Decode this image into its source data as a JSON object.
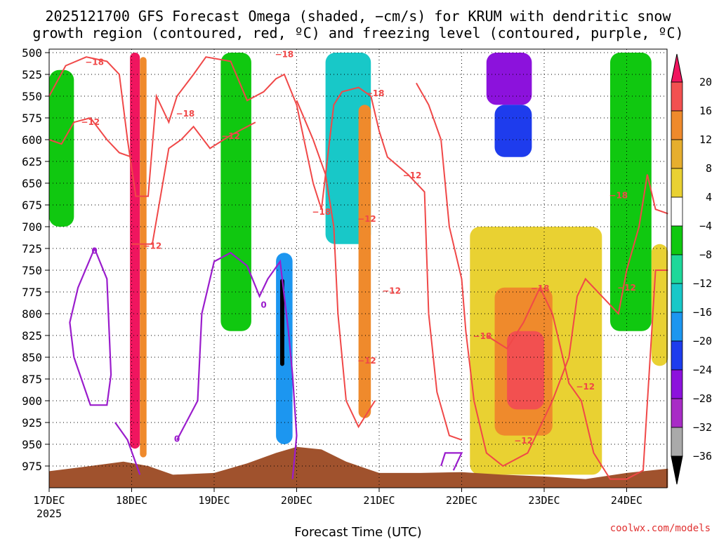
{
  "chart_data": {
    "type": "heatmap",
    "title_line1": "2025121700 GFS Forecast Omega (shaded, −cm/s) for KRUM with dendritic snow",
    "title_line2": "growth region (contoured, red, ºC) and freezing level (contoured, purple, ºC)",
    "xlabel": "Forecast Time (UTC)",
    "credit": "coolwx.com/models",
    "x_ticks": [
      {
        "label": "17DEC",
        "sub": "2025",
        "day": 0
      },
      {
        "label": "18DEC",
        "day": 1
      },
      {
        "label": "19DEC",
        "day": 2
      },
      {
        "label": "20DEC",
        "day": 3
      },
      {
        "label": "21DEC",
        "day": 4
      },
      {
        "label": "22DEC",
        "day": 5
      },
      {
        "label": "23DEC",
        "day": 6
      },
      {
        "label": "24DEC",
        "day": 7
      }
    ],
    "xlim_days": [
      0,
      7.5
    ],
    "y_ticks": [
      500,
      525,
      550,
      575,
      600,
      625,
      650,
      675,
      700,
      725,
      750,
      775,
      800,
      825,
      850,
      875,
      900,
      925,
      950,
      975
    ],
    "ylim_hpa": [
      496,
      1000
    ],
    "colorbar": {
      "labels": [
        "20",
        "16",
        "12",
        "8",
        "4",
        "−4",
        "−8",
        "−12",
        "−16",
        "−20",
        "−24",
        "−28",
        "−32",
        "−36"
      ],
      "colors": [
        "#f0155f",
        "#f25050",
        "#ef8a2c",
        "#e6ae2e",
        "#e9d132",
        "#ffffff",
        "#10c810",
        "#1ed89a",
        "#18c8c8",
        "#1c96f0",
        "#1e3ced",
        "#8c12dc",
        "#a82cc6",
        "#aaaaaa",
        "#000000"
      ]
    },
    "omega_features": [
      {
        "name": "pink-column-18dec",
        "color": "#f0155f",
        "day0": 0.98,
        "day1": 1.1,
        "p_top": 500,
        "p_bot": 955
      },
      {
        "name": "orange-core-18dec",
        "color": "#ef8a2c",
        "day0": 1.1,
        "day1": 1.18,
        "p_top": 505,
        "p_bot": 965
      },
      {
        "name": "green-band-17dec",
        "color": "#10c810",
        "day0": 0.0,
        "day1": 0.3,
        "p_top": 520,
        "p_bot": 700
      },
      {
        "name": "green-band-19dec",
        "color": "#10c810",
        "day0": 2.08,
        "day1": 2.45,
        "p_top": 500,
        "p_bot": 820
      },
      {
        "name": "blue-column-20dec",
        "color": "#1c96f0",
        "day0": 2.75,
        "day1": 2.95,
        "p_top": 730,
        "p_bot": 950
      },
      {
        "name": "black-core-20dec",
        "color": "#000000",
        "day0": 2.8,
        "day1": 2.85,
        "p_top": 760,
        "p_bot": 860
      },
      {
        "name": "purple-column-21dec",
        "color": "#8c12dc",
        "day0": 3.4,
        "day1": 3.55,
        "p_top": 500,
        "p_bot": 625
      },
      {
        "name": "cyan-column-21dec",
        "color": "#18c8c8",
        "day0": 3.35,
        "day1": 3.9,
        "p_top": 500,
        "p_bot": 720
      },
      {
        "name": "orange-band-21dec",
        "color": "#ef8a2c",
        "day0": 3.75,
        "day1": 3.9,
        "p_top": 560,
        "p_bot": 920
      },
      {
        "name": "purple-mid-23dec",
        "color": "#8c12dc",
        "day0": 5.3,
        "day1": 5.85,
        "p_top": 500,
        "p_bot": 560
      },
      {
        "name": "blue-mid-23dec",
        "color": "#1e3ced",
        "day0": 5.4,
        "day1": 5.85,
        "p_top": 560,
        "p_bot": 620
      },
      {
        "name": "yellow-low-23dec",
        "color": "#e9d132",
        "day0": 5.1,
        "day1": 6.7,
        "p_top": 700,
        "p_bot": 985
      },
      {
        "name": "orange-low-23dec",
        "color": "#ef8a2c",
        "day0": 5.4,
        "day1": 6.1,
        "p_top": 770,
        "p_bot": 940
      },
      {
        "name": "red-core-23dec",
        "color": "#f25050",
        "day0": 5.55,
        "day1": 6.0,
        "p_top": 820,
        "p_bot": 910
      },
      {
        "name": "green-right-24dec",
        "color": "#10c810",
        "day0": 6.8,
        "day1": 7.3,
        "p_top": 500,
        "p_bot": 820
      },
      {
        "name": "yellow-right-24dec",
        "color": "#e9d132",
        "day0": 7.3,
        "day1": 7.5,
        "p_top": 720,
        "p_bot": 860
      }
    ],
    "contour_labels_red": [
      {
        "text": "−18",
        "day": 0.55,
        "p": 511
      },
      {
        "text": "−12",
        "day": 0.5,
        "p": 580
      },
      {
        "text": "−18",
        "day": 1.65,
        "p": 570
      },
      {
        "text": "−12",
        "day": 2.2,
        "p": 596
      },
      {
        "text": "−12",
        "day": 1.25,
        "p": 722
      },
      {
        "text": "−18",
        "day": 2.85,
        "p": 502
      },
      {
        "text": "−18",
        "day": 3.3,
        "p": 683
      },
      {
        "text": "−12",
        "day": 3.85,
        "p": 691
      },
      {
        "text": "−18",
        "day": 3.95,
        "p": 547
      },
      {
        "text": "−12",
        "day": 4.4,
        "p": 641
      },
      {
        "text": "−12",
        "day": 4.15,
        "p": 774
      },
      {
        "text": "−12",
        "day": 3.85,
        "p": 854
      },
      {
        "text": "−18",
        "day": 5.25,
        "p": 826
      },
      {
        "text": "−18",
        "day": 5.95,
        "p": 771
      },
      {
        "text": "−12",
        "day": 5.75,
        "p": 946
      },
      {
        "text": "−12",
        "day": 6.5,
        "p": 884
      },
      {
        "text": "−18",
        "day": 6.9,
        "p": 664
      },
      {
        "text": "−12",
        "day": 7.0,
        "p": 770
      }
    ],
    "contour_labels_purple": [
      {
        "text": "0",
        "day": 0.55,
        "p": 728
      },
      {
        "text": "0",
        "day": 1.55,
        "p": 944
      },
      {
        "text": "0",
        "day": 2.6,
        "p": 790
      }
    ],
    "red_contours": [
      [
        [
          0.0,
          550
        ],
        [
          0.2,
          515
        ],
        [
          0.45,
          505
        ],
        [
          0.7,
          510
        ],
        [
          0.85,
          525
        ],
        [
          0.95,
          600
        ],
        [
          1.05,
          665
        ],
        [
          1.2,
          665
        ],
        [
          1.3,
          550
        ],
        [
          1.45,
          580
        ],
        [
          1.55,
          550
        ],
        [
          1.75,
          525
        ],
        [
          1.9,
          505
        ],
        [
          2.2,
          510
        ],
        [
          2.4,
          555
        ],
        [
          2.6,
          545
        ],
        [
          2.75,
          530
        ],
        [
          2.85,
          525
        ],
        [
          3.0,
          560
        ],
        [
          3.2,
          650
        ],
        [
          3.3,
          680
        ],
        [
          3.45,
          560
        ],
        [
          3.55,
          545
        ],
        [
          3.75,
          540
        ],
        [
          3.9,
          550
        ],
        [
          4.0,
          590
        ],
        [
          4.1,
          620
        ],
        [
          4.35,
          640
        ],
        [
          4.55,
          660
        ],
        [
          4.6,
          800
        ],
        [
          4.7,
          890
        ],
        [
          4.85,
          940
        ],
        [
          5.0,
          945
        ]
      ],
      [
        [
          0.0,
          600
        ],
        [
          0.15,
          605
        ],
        [
          0.3,
          580
        ],
        [
          0.5,
          575
        ],
        [
          0.7,
          600
        ],
        [
          0.85,
          615
        ],
        [
          1.0,
          620
        ]
      ],
      [
        [
          1.0,
          720
        ],
        [
          1.25,
          720
        ],
        [
          1.45,
          610
        ],
        [
          1.6,
          600
        ],
        [
          1.75,
          585
        ],
        [
          1.95,
          610
        ],
        [
          2.2,
          595
        ],
        [
          2.5,
          580
        ]
      ],
      [
        [
          3.0,
          555
        ],
        [
          3.2,
          600
        ],
        [
          3.35,
          640
        ],
        [
          3.45,
          700
        ],
        [
          3.5,
          800
        ],
        [
          3.6,
          900
        ],
        [
          3.75,
          930
        ],
        [
          3.95,
          900
        ]
      ],
      [
        [
          4.45,
          535
        ],
        [
          4.6,
          560
        ],
        [
          4.75,
          600
        ],
        [
          4.85,
          700
        ],
        [
          5.0,
          760
        ],
        [
          5.05,
          820
        ],
        [
          5.15,
          900
        ],
        [
          5.3,
          960
        ],
        [
          5.5,
          975
        ],
        [
          5.8,
          960
        ],
        [
          6.1,
          900
        ],
        [
          6.3,
          850
        ],
        [
          6.4,
          780
        ],
        [
          6.5,
          760
        ],
        [
          6.7,
          780
        ],
        [
          6.9,
          800
        ],
        [
          7.0,
          750
        ],
        [
          7.15,
          700
        ],
        [
          7.25,
          640
        ],
        [
          7.35,
          680
        ],
        [
          7.5,
          685
        ]
      ],
      [
        [
          5.3,
          825
        ],
        [
          5.55,
          840
        ],
        [
          5.75,
          810
        ],
        [
          5.95,
          770
        ],
        [
          6.1,
          800
        ],
        [
          6.3,
          880
        ],
        [
          6.45,
          900
        ],
        [
          6.6,
          960
        ],
        [
          6.8,
          990
        ],
        [
          7.0,
          990
        ],
        [
          7.2,
          980
        ],
        [
          7.35,
          750
        ],
        [
          7.5,
          750
        ]
      ]
    ],
    "purple_contours": [
      [
        [
          0.55,
          725
        ],
        [
          0.7,
          760
        ],
        [
          0.75,
          870
        ],
        [
          0.7,
          905
        ],
        [
          0.5,
          905
        ],
        [
          0.3,
          850
        ],
        [
          0.25,
          810
        ],
        [
          0.35,
          770
        ],
        [
          0.55,
          725
        ]
      ],
      [
        [
          0.8,
          925
        ],
        [
          0.95,
          945
        ],
        [
          1.1,
          985
        ]
      ],
      [
        [
          1.55,
          945
        ],
        [
          1.8,
          900
        ],
        [
          1.85,
          800
        ],
        [
          2.0,
          740
        ],
        [
          2.2,
          730
        ],
        [
          2.4,
          745
        ],
        [
          2.55,
          780
        ],
        [
          2.65,
          760
        ],
        [
          2.8,
          740
        ],
        [
          2.9,
          820
        ],
        [
          2.95,
          870
        ],
        [
          3.0,
          940
        ],
        [
          2.95,
          990
        ]
      ],
      [
        [
          4.75,
          975
        ],
        [
          4.8,
          960
        ],
        [
          5.0,
          960
        ],
        [
          4.9,
          980
        ]
      ]
    ],
    "terrain": {
      "color": "#a0522d",
      "profile": [
        [
          0.0,
          981
        ],
        [
          0.5,
          975
        ],
        [
          0.9,
          970
        ],
        [
          1.2,
          975
        ],
        [
          1.5,
          985
        ],
        [
          2.0,
          983
        ],
        [
          2.4,
          972
        ],
        [
          2.75,
          960
        ],
        [
          3.0,
          953
        ],
        [
          3.3,
          956
        ],
        [
          3.6,
          970
        ],
        [
          4.0,
          983
        ],
        [
          4.5,
          983
        ],
        [
          5.0,
          982
        ],
        [
          5.5,
          985
        ],
        [
          6.0,
          987
        ],
        [
          6.5,
          990
        ],
        [
          7.0,
          983
        ],
        [
          7.5,
          978
        ]
      ]
    }
  }
}
